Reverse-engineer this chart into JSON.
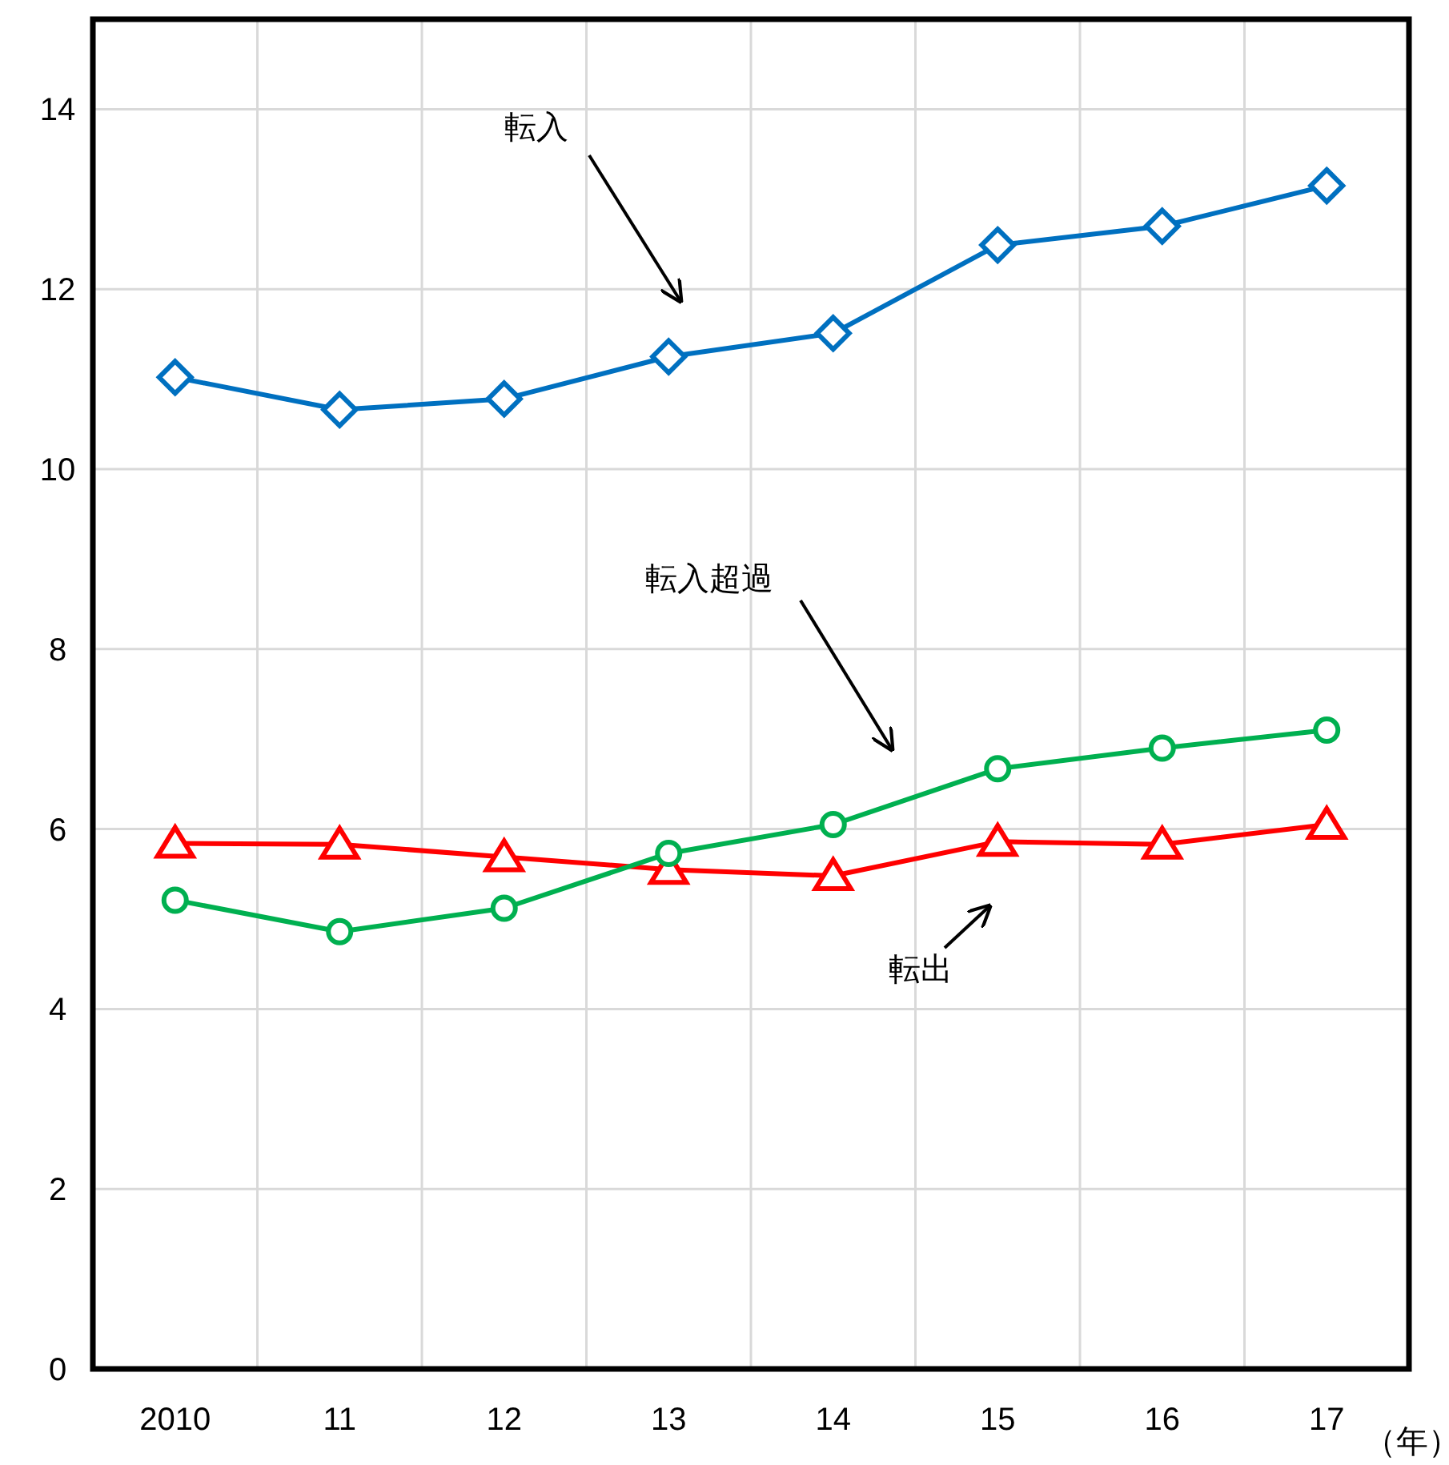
{
  "chart_data": {
    "type": "line",
    "categories": [
      "2010",
      "11",
      "12",
      "13",
      "14",
      "15",
      "16",
      "17"
    ],
    "xlabel": "（年）",
    "ylim": [
      0,
      15
    ],
    "yticks": [
      0,
      2,
      4,
      6,
      8,
      10,
      12,
      14
    ],
    "grid": true,
    "series": [
      {
        "name": "転入",
        "color": "#0070c0",
        "marker": "diamond",
        "values": [
          11.02,
          10.66,
          10.78,
          11.25,
          11.51,
          12.49,
          12.7,
          13.15
        ]
      },
      {
        "name": "転出",
        "color": "#ff0000",
        "marker": "triangle",
        "values": [
          5.84,
          5.83,
          5.69,
          5.55,
          5.48,
          5.86,
          5.83,
          6.05
        ]
      },
      {
        "name": "転入超過",
        "color": "#00b050",
        "marker": "circle",
        "values": [
          5.21,
          4.86,
          5.12,
          5.73,
          6.05,
          6.67,
          6.9,
          7.1
        ]
      }
    ]
  }
}
